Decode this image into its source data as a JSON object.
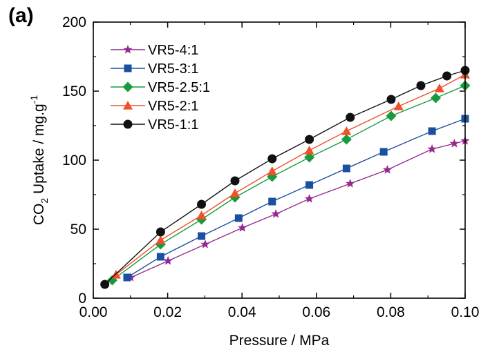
{
  "panel_label": "(a)",
  "chart_data": {
    "type": "line",
    "title": "",
    "xlabel": "Pressure / MPa",
    "ylabel_parts": {
      "prefix": "CO",
      "sub": "2",
      "middle": " Uptake / mg.g",
      "sup": "-1"
    },
    "xlim": [
      0.0,
      0.1
    ],
    "ylim": [
      0,
      200
    ],
    "xticks": [
      "0.00",
      "0.02",
      "0.04",
      "0.06",
      "0.08",
      "0.10"
    ],
    "yticks": [
      "0",
      "50",
      "100",
      "150",
      "200"
    ],
    "grid": false,
    "legend_position": "top-left",
    "series": [
      {
        "name": "VR5-4:1",
        "color": "#942a8f",
        "marker": "star",
        "x": [
          0.0101,
          0.0201,
          0.0301,
          0.0401,
          0.0491,
          0.0581,
          0.0691,
          0.0791,
          0.0911,
          0.0971,
          0.1
        ],
        "y": [
          15,
          27,
          39,
          51,
          61,
          72,
          83,
          93,
          108,
          112,
          114
        ]
      },
      {
        "name": "VR5-3:1",
        "color": "#1b4fa0",
        "marker": "square",
        "x": [
          0.0091,
          0.0181,
          0.0291,
          0.0391,
          0.0481,
          0.0581,
          0.0681,
          0.0781,
          0.0911,
          0.1
        ],
        "y": [
          15,
          30,
          45,
          58,
          70,
          82,
          94,
          106,
          121,
          130
        ]
      },
      {
        "name": "VR5-2.5:1",
        "color": "#1a9a3e",
        "marker": "diamond",
        "x": [
          0.0051,
          0.0181,
          0.0291,
          0.0381,
          0.0481,
          0.0581,
          0.0681,
          0.0801,
          0.0921,
          0.1
        ],
        "y": [
          13,
          39,
          57,
          73,
          88,
          102,
          115,
          132,
          145,
          154
        ]
      },
      {
        "name": "VR5-2:1",
        "color": "#f0502a",
        "marker": "triangle",
        "x": [
          0.0061,
          0.0181,
          0.0291,
          0.0381,
          0.0481,
          0.0581,
          0.0681,
          0.0821,
          0.0931,
          0.1
        ],
        "y": [
          17,
          42,
          60,
          76,
          92,
          107,
          121,
          139,
          152,
          162
        ]
      },
      {
        "name": "VR5-1:1",
        "color": "#111111",
        "marker": "circle",
        "x": [
          0.0031,
          0.0181,
          0.0291,
          0.0381,
          0.0481,
          0.0581,
          0.0691,
          0.0801,
          0.0881,
          0.0951,
          0.1
        ],
        "y": [
          10,
          48,
          68,
          85,
          101,
          115,
          131,
          144,
          154,
          161,
          165
        ]
      }
    ]
  }
}
